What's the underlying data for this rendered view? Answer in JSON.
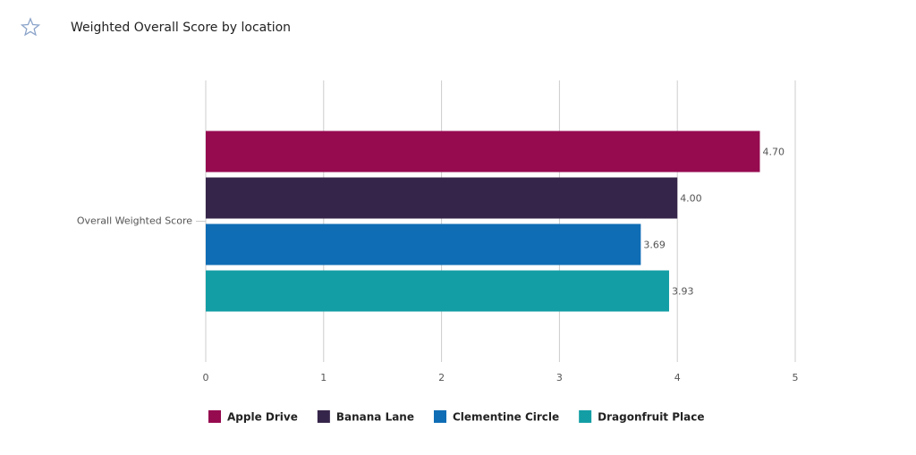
{
  "chart_data": {
    "type": "bar",
    "orientation": "horizontal",
    "title": "Weighted Overall Score by location",
    "categories": [
      "Overall Weighted Score"
    ],
    "series": [
      {
        "name": "Apple Drive",
        "color": "#960a50",
        "values": [
          4.7
        ],
        "value_labels": [
          "4.70"
        ]
      },
      {
        "name": "Banana Lane",
        "color": "#36254a",
        "values": [
          4.0
        ],
        "value_labels": [
          "4.00"
        ]
      },
      {
        "name": "Clementine Circle",
        "color": "#0f6db5",
        "values": [
          3.69
        ],
        "value_labels": [
          "3.69"
        ]
      },
      {
        "name": "Dragonfruit Place",
        "color": "#139ea5",
        "values": [
          3.93
        ],
        "value_labels": [
          "3.93"
        ]
      }
    ],
    "xlim": [
      0,
      5
    ],
    "xticks": [
      0,
      1,
      2,
      3,
      4,
      5
    ],
    "grid": true,
    "legend": "bottom"
  }
}
